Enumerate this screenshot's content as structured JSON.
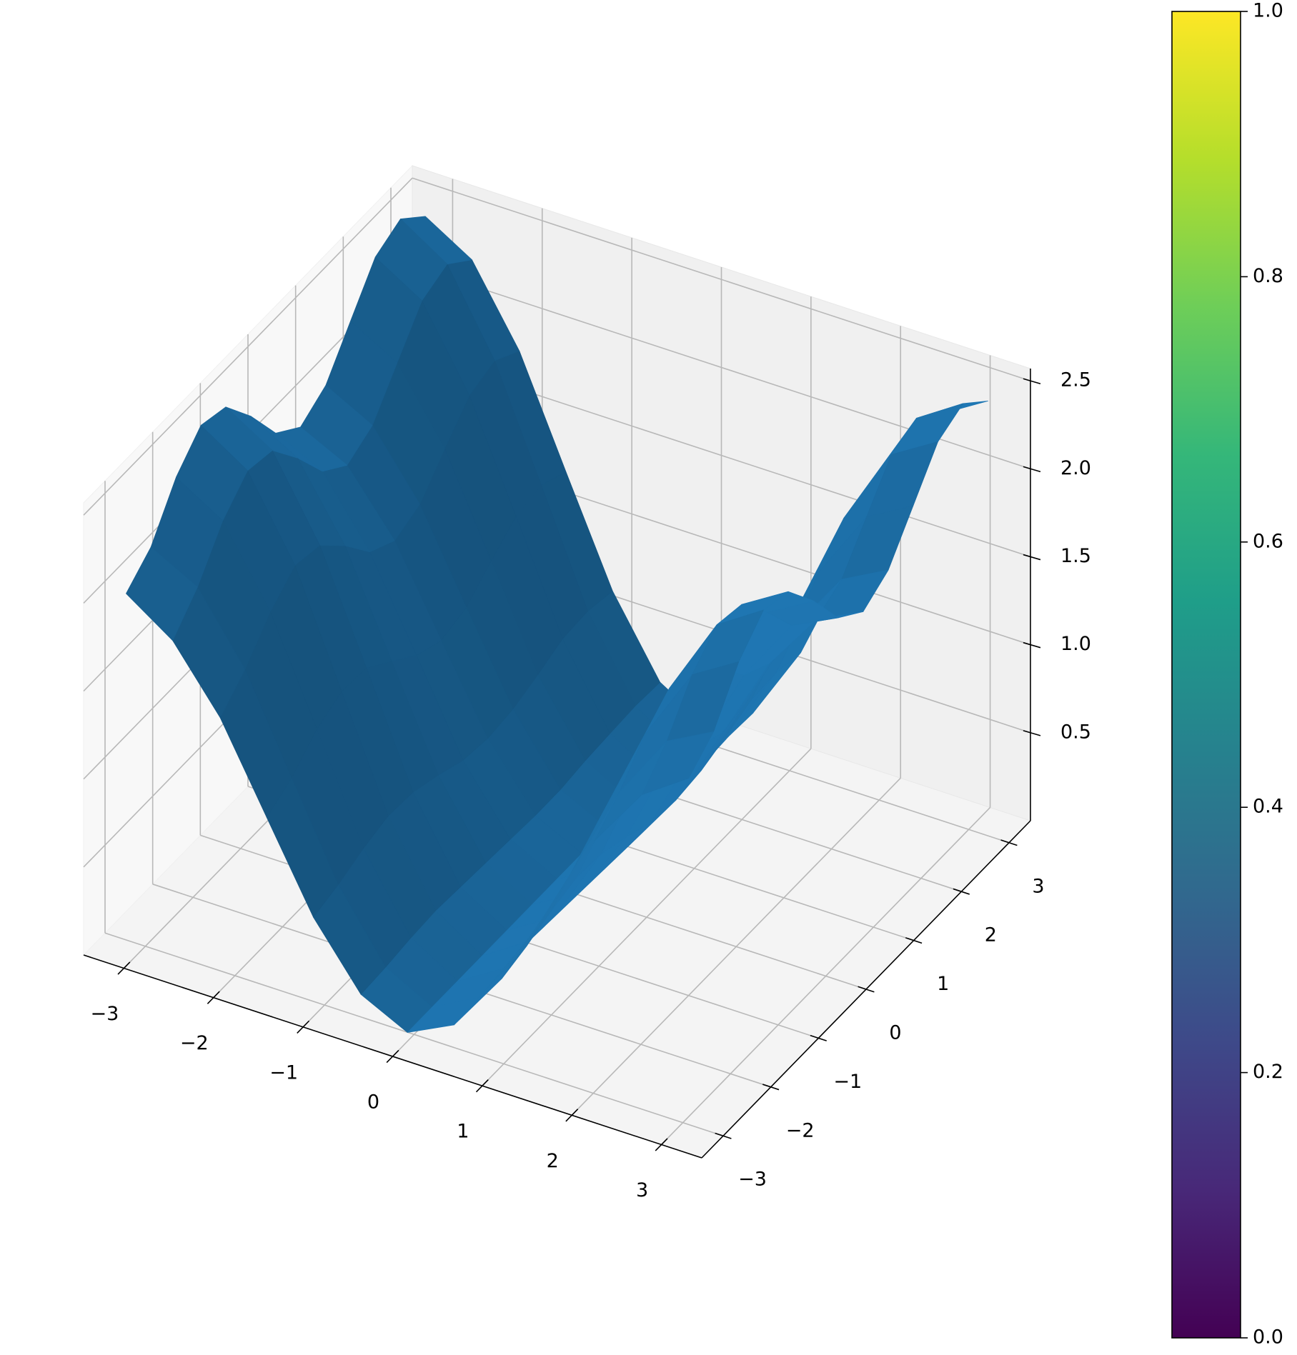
{
  "chart_data": {
    "type": "surface",
    "color": "#1f77b4",
    "x": [
      -3.14,
      -2.62,
      -2.09,
      -1.57,
      -1.05,
      -0.52,
      0,
      0.52,
      1.05,
      1.57,
      2.09,
      2.62,
      3.14
    ],
    "y": [
      -3.14,
      -2.62,
      -2.09,
      -1.57,
      -1.05,
      -0.52,
      0,
      0.52,
      1.05,
      1.57,
      2.09,
      2.62,
      3.14
    ],
    "z": [
      [
        2.02,
        1.84,
        1.49,
        1.01,
        0.53,
        0.18,
        0.05,
        0.18,
        0.53,
        1.01,
        1.49,
        1.84,
        2.02
      ],
      [
        2.14,
        2.0,
        1.62,
        1.09,
        0.57,
        0.19,
        0.05,
        0.19,
        0.57,
        1.09,
        1.62,
        2.0,
        2.14
      ],
      [
        2.39,
        2.23,
        1.8,
        1.22,
        0.63,
        0.21,
        0.05,
        0.21,
        0.63,
        1.22,
        1.8,
        2.23,
        2.39
      ],
      [
        2.54,
        2.37,
        1.92,
        1.29,
        0.67,
        0.22,
        0.05,
        0.22,
        0.67,
        1.29,
        1.92,
        2.37,
        2.54
      ],
      [
        2.5,
        2.34,
        1.89,
        1.28,
        0.66,
        0.21,
        0.05,
        0.21,
        0.66,
        1.28,
        1.89,
        2.34,
        2.5
      ],
      [
        2.3,
        2.15,
        1.74,
        1.17,
        0.61,
        0.2,
        0.05,
        0.2,
        0.61,
        1.17,
        1.74,
        2.15,
        2.3
      ],
      [
        2.06,
        1.93,
        1.56,
        1.06,
        0.55,
        0.19,
        0.05,
        0.19,
        0.55,
        1.06,
        1.56,
        1.93,
        2.06
      ],
      [
        1.95,
        1.82,
        1.48,
        1.0,
        0.53,
        0.18,
        0.05,
        0.18,
        0.53,
        1.0,
        1.48,
        1.82,
        1.95
      ],
      [
        2.04,
        1.9,
        1.54,
        1.04,
        0.55,
        0.18,
        0.05,
        0.18,
        0.55,
        1.04,
        1.54,
        1.9,
        2.04
      ],
      [
        2.26,
        2.11,
        1.71,
        1.16,
        0.6,
        0.2,
        0.05,
        0.2,
        0.6,
        1.16,
        1.71,
        2.11,
        2.26
      ],
      [
        2.48,
        2.32,
        1.87,
        1.27,
        0.66,
        0.21,
        0.05,
        0.21,
        0.66,
        1.27,
        1.87,
        2.32,
        2.48
      ],
      [
        2.55,
        2.38,
        1.92,
        1.3,
        0.67,
        0.22,
        0.05,
        0.22,
        0.67,
        1.3,
        1.92,
        2.38,
        2.55
      ],
      [
        2.42,
        2.26,
        1.83,
        1.23,
        0.64,
        0.21,
        0.05,
        0.21,
        0.64,
        1.23,
        1.83,
        2.26,
        2.42
      ]
    ],
    "xlim": [
      -3.45,
      3.45
    ],
    "ylim": [
      -3.45,
      3.45
    ],
    "zlim": [
      0,
      2.57
    ],
    "xticks": [
      {
        "value": -3,
        "label": "−3"
      },
      {
        "value": -2,
        "label": "−2"
      },
      {
        "value": -1,
        "label": "−1"
      },
      0,
      1,
      2,
      3
    ],
    "yticks": [
      {
        "value": -3,
        "label": "−3"
      },
      {
        "value": -2,
        "label": "−2"
      },
      {
        "value": -1,
        "label": "−1"
      },
      0,
      1,
      2,
      3
    ],
    "zticks": [
      0.5,
      {
        "value": 1,
        "label": "1.0"
      },
      1.5,
      {
        "value": 2,
        "label": "2.0"
      },
      2.5
    ],
    "grid": true,
    "colorbar": {
      "colormap": "viridis",
      "ylim": [
        0,
        1
      ],
      "yticks": [
        {
          "value": 0,
          "label": "0.0"
        },
        0.2,
        0.4,
        0.6,
        0.8,
        {
          "value": 1,
          "label": "1.0"
        }
      ]
    }
  }
}
